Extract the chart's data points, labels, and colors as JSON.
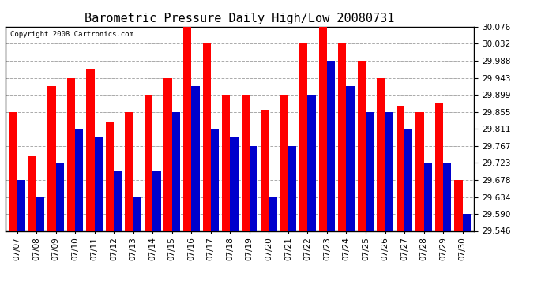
{
  "title": "Barometric Pressure Daily High/Low 20080731",
  "copyright": "Copyright 2008 Cartronics.com",
  "dates": [
    "07/07",
    "07/08",
    "07/09",
    "07/10",
    "07/11",
    "07/12",
    "07/13",
    "07/14",
    "07/15",
    "07/16",
    "07/17",
    "07/18",
    "07/19",
    "07/20",
    "07/21",
    "07/22",
    "07/23",
    "07/24",
    "07/25",
    "07/26",
    "07/27",
    "07/28",
    "07/29",
    "07/30"
  ],
  "highs": [
    29.855,
    29.74,
    29.921,
    29.943,
    29.965,
    29.83,
    29.855,
    29.9,
    29.943,
    30.076,
    30.032,
    29.9,
    29.899,
    29.86,
    29.9,
    30.032,
    30.076,
    30.032,
    29.988,
    29.943,
    29.87,
    29.855,
    29.876,
    29.678
  ],
  "lows": [
    29.678,
    29.634,
    29.723,
    29.811,
    29.789,
    29.7,
    29.634,
    29.7,
    29.855,
    29.921,
    29.811,
    29.79,
    29.767,
    29.634,
    29.767,
    29.899,
    29.988,
    29.921,
    29.855,
    29.855,
    29.811,
    29.723,
    29.723,
    29.59
  ],
  "high_color": "#ff0000",
  "low_color": "#0000cc",
  "bg_color": "#ffffff",
  "grid_color": "#aaaaaa",
  "yticks": [
    29.546,
    29.59,
    29.634,
    29.678,
    29.723,
    29.767,
    29.811,
    29.855,
    29.899,
    29.943,
    29.988,
    30.032,
    30.076
  ],
  "ymin": 29.546,
  "ymax": 30.076,
  "bar_width": 0.42,
  "figwidth": 6.9,
  "figheight": 3.75,
  "dpi": 100
}
